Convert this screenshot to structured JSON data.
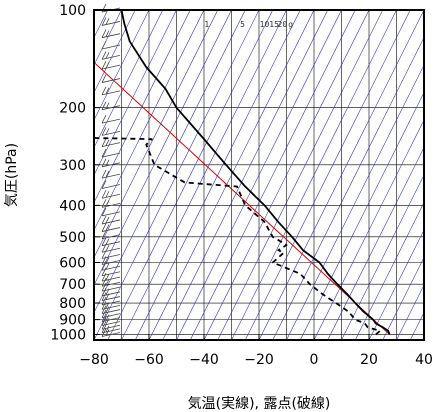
{
  "chart_data": {
    "type": "line",
    "chart_kind": "skew-T log-P diagram",
    "xlabel": "気温(実線), 露点(破線)",
    "ylabel": "気圧(hPa)",
    "xlim": [
      -80,
      40
    ],
    "ylim": [
      1040,
      100
    ],
    "y_scale": "log",
    "x_ticks": [
      -80,
      -60,
      -40,
      -20,
      0,
      20,
      40
    ],
    "x_tick_labels": [
      "−80",
      "−60",
      "−40",
      "−20",
      "0",
      "20",
      "40"
    ],
    "y_ticks": [
      100,
      200,
      300,
      400,
      500,
      600,
      700,
      800,
      900,
      1000
    ],
    "y_tick_labels": [
      "100",
      "200",
      "300",
      "400",
      "500",
      "600",
      "700",
      "800",
      "900",
      "1000"
    ],
    "mixing_ratio_labels": [
      "1",
      "5",
      "10",
      "15",
      "20",
      "g"
    ],
    "grid": true,
    "colors": {
      "temperature": "#000000",
      "dewpoint": "#000000",
      "isotherm_skewed": "#3333cc",
      "reference_line": "#dd0000",
      "grid": "#000000",
      "wind_barb": "#444444"
    },
    "series": [
      {
        "style": "solid",
        "points": [
          {
            "p": 1000,
            "t": 27.5
          },
          {
            "p": 975,
            "t": 27.0
          },
          {
            "p": 950,
            "t": 25.0
          },
          {
            "p": 925,
            "t": 22.5
          },
          {
            "p": 900,
            "t": 21.5
          },
          {
            "p": 850,
            "t": 18.0
          },
          {
            "p": 800,
            "t": 15.0
          },
          {
            "p": 750,
            "t": 12.0
          },
          {
            "p": 700,
            "t": 8.5
          },
          {
            "p": 650,
            "t": 5.0
          },
          {
            "p": 600,
            "t": 2.0
          },
          {
            "p": 550,
            "t": -4.0
          },
          {
            "p": 500,
            "t": -8.0
          },
          {
            "p": 450,
            "t": -13.0
          },
          {
            "p": 400,
            "t": -18.0
          },
          {
            "p": 350,
            "t": -25.0
          },
          {
            "p": 300,
            "t": -32.0
          },
          {
            "p": 250,
            "t": -40.0
          },
          {
            "p": 200,
            "t": -50.0
          },
          {
            "p": 175,
            "t": -54.0
          },
          {
            "p": 150,
            "t": -61.0
          },
          {
            "p": 125,
            "t": -67.0
          },
          {
            "p": 110,
            "t": -69.0
          },
          {
            "p": 100,
            "t": -70.0
          }
        ]
      },
      {
        "style": "dashed",
        "points": [
          {
            "p": 1000,
            "t": 22.5
          },
          {
            "p": 975,
            "t": 24.0
          },
          {
            "p": 950,
            "t": 19.5
          },
          {
            "p": 925,
            "t": 18.5
          },
          {
            "p": 900,
            "t": 15.0
          },
          {
            "p": 850,
            "t": 12.5
          },
          {
            "p": 800,
            "t": 8.0
          },
          {
            "p": 750,
            "t": 3.0
          },
          {
            "p": 700,
            "t": -1.5
          },
          {
            "p": 650,
            "t": -5.0
          },
          {
            "p": 600,
            "t": -15.0
          },
          {
            "p": 560,
            "t": -11.0
          },
          {
            "p": 550,
            "t": -13.0
          },
          {
            "p": 530,
            "t": -10.0
          },
          {
            "p": 500,
            "t": -15.0
          },
          {
            "p": 450,
            "t": -18.0
          },
          {
            "p": 400,
            "t": -25.0
          },
          {
            "p": 350,
            "t": -28.0
          },
          {
            "p": 340,
            "t": -47.0
          },
          {
            "p": 300,
            "t": -58.0
          },
          {
            "p": 260,
            "t": -61.0
          },
          {
            "p": 250,
            "t": -59.0
          },
          {
            "p": 248,
            "t": -80.0
          }
        ]
      }
    ],
    "reference_line": {
      "points": [
        {
          "p": 1000,
          "t": 27.5
        },
        {
          "p": 145,
          "t": -80.0
        }
      ]
    },
    "wind_barbs": {
      "pressures": [
        1000,
        975,
        950,
        925,
        900,
        875,
        850,
        825,
        800,
        775,
        750,
        725,
        700,
        675,
        650,
        625,
        600,
        575,
        550,
        525,
        500,
        475,
        450,
        425,
        400,
        375,
        350,
        325,
        300,
        280,
        260,
        240,
        220,
        200,
        180,
        165,
        150,
        140,
        130,
        120,
        110,
        100
      ]
    }
  }
}
